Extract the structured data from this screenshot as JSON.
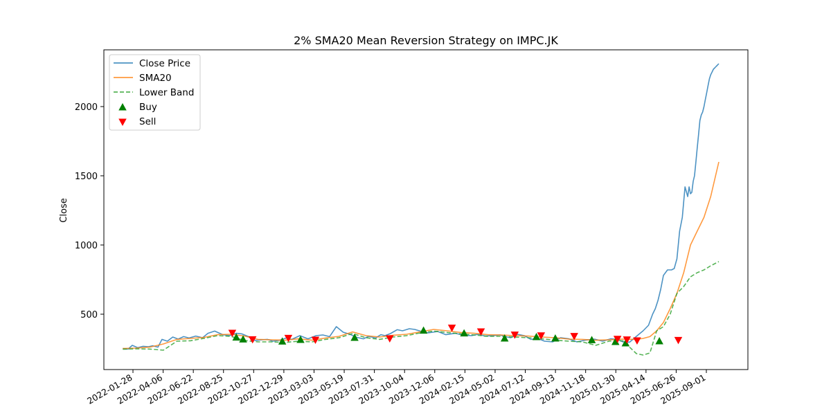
{
  "chart_data": {
    "type": "line",
    "title": "2% SMA20 Mean Reversion Strategy on IMPC.JK",
    "xlabel": "",
    "ylabel": "Close",
    "x_tick_labels": [
      "2022-01-28",
      "2022-04-06",
      "2022-06-22",
      "2022-08-25",
      "2022-10-27",
      "2022-12-29",
      "2023-03-03",
      "2023-05-19",
      "2023-07-31",
      "2023-10-04",
      "2023-12-06",
      "2024-02-15",
      "2024-05-02",
      "2024-07-12",
      "2024-09-13",
      "2024-11-18",
      "2025-01-30",
      "2025-04-14",
      "2025-06-26",
      "2025-09-01"
    ],
    "y_ticks": [
      500,
      1000,
      1500,
      2000
    ],
    "ylim": [
      100,
      2410
    ],
    "x_index_range": [
      -28,
      925
    ],
    "grid": false,
    "legend_position": "upper left",
    "colors": {
      "close": "#1f77b4",
      "sma20": "#ff7f0e",
      "lower": "#2ca02c",
      "buy": "#008000",
      "sell": "#ff0000"
    },
    "series": [
      {
        "name": "Close Price",
        "style": "solid",
        "x": [
          0,
          8,
          14,
          22,
          30,
          38,
          44,
          52,
          58,
          66,
          74,
          82,
          90,
          98,
          108,
          118,
          126,
          136,
          148,
          158,
          168,
          176,
          186,
          196,
          206,
          214,
          222,
          232,
          242,
          250,
          262,
          274,
          286,
          296,
          306,
          316,
          326,
          336,
          346,
          356,
          364,
          374,
          382,
          388,
          396,
          406,
          414,
          424,
          432,
          440,
          452,
          466,
          478,
          492,
          504,
          516,
          526,
          536,
          548,
          558,
          566,
          574,
          584,
          594,
          604,
          614,
          624,
          636,
          648,
          660,
          672,
          684,
          698,
          710,
          722,
          732,
          740,
          750,
          760,
          770,
          778,
          784,
          788,
          792,
          796,
          800,
          806,
          812,
          816,
          820,
          824,
          828,
          832,
          836,
          838,
          840,
          842,
          844,
          846,
          848,
          850,
          852,
          854,
          856,
          858,
          860,
          862,
          864,
          866,
          868,
          870,
          872,
          874,
          876,
          878,
          880,
          882
        ],
        "values": [
          252,
          248,
          275,
          258,
          268,
          265,
          272,
          262,
          318,
          305,
          335,
          320,
          338,
          328,
          342,
          330,
          362,
          378,
          352,
          345,
          362,
          358,
          338,
          310,
          315,
          318,
          305,
          312,
          328,
          318,
          345,
          322,
          345,
          350,
          338,
          410,
          370,
          355,
          333,
          322,
          340,
          328,
          352,
          345,
          360,
          388,
          380,
          395,
          390,
          378,
          365,
          375,
          352,
          362,
          348,
          345,
          355,
          342,
          345,
          350,
          338,
          330,
          355,
          345,
          318,
          325,
          305,
          300,
          330,
          322,
          300,
          312,
          320,
          305,
          322,
          318,
          300,
          298,
          340,
          380,
          420,
          500,
          540,
          600,
          680,
          780,
          820,
          820,
          830,
          900,
          1100,
          1200,
          1420,
          1350,
          1420,
          1370,
          1380,
          1460,
          1500,
          1600,
          1700,
          1800,
          1900,
          1940,
          1960,
          2000,
          2050,
          2100,
          2150,
          2200,
          2230,
          2250,
          2270,
          2280,
          2290,
          2300,
          2310
        ]
      },
      {
        "name": "SMA20",
        "style": "solid",
        "x": [
          0,
          20,
          40,
          60,
          80,
          100,
          120,
          140,
          160,
          180,
          200,
          220,
          240,
          260,
          280,
          300,
          320,
          340,
          360,
          380,
          400,
          420,
          440,
          460,
          480,
          500,
          520,
          540,
          560,
          580,
          600,
          620,
          640,
          660,
          680,
          700,
          720,
          740,
          760,
          770,
          780,
          790,
          800,
          810,
          820,
          830,
          840,
          850,
          860,
          870,
          882
        ],
        "values": [
          252,
          255,
          262,
          285,
          318,
          325,
          332,
          352,
          355,
          342,
          318,
          315,
          312,
          322,
          312,
          328,
          340,
          372,
          345,
          335,
          348,
          355,
          372,
          390,
          380,
          368,
          362,
          352,
          350,
          345,
          342,
          335,
          330,
          320,
          318,
          312,
          315,
          320,
          318,
          325,
          338,
          380,
          440,
          540,
          650,
          800,
          1000,
          1100,
          1200,
          1350,
          1600
        ]
      },
      {
        "name": "Lower Band",
        "style": "dashed",
        "x": [
          0,
          20,
          40,
          60,
          80,
          100,
          120,
          140,
          160,
          180,
          200,
          220,
          240,
          260,
          280,
          300,
          320,
          340,
          360,
          380,
          400,
          420,
          440,
          460,
          480,
          500,
          520,
          540,
          560,
          580,
          600,
          620,
          640,
          660,
          680,
          700,
          720,
          740,
          760,
          770,
          780,
          790,
          800,
          810,
          820,
          830,
          840,
          850,
          860,
          870,
          882
        ],
        "values": [
          247,
          250,
          248,
          240,
          305,
          308,
          325,
          345,
          340,
          310,
          300,
          300,
          296,
          305,
          300,
          318,
          330,
          360,
          330,
          318,
          335,
          345,
          365,
          378,
          368,
          358,
          350,
          340,
          340,
          335,
          330,
          322,
          312,
          305,
          300,
          275,
          306,
          308,
          215,
          205,
          220,
          380,
          410,
          500,
          650,
          700,
          770,
          800,
          820,
          850,
          880
        ]
      }
    ],
    "buy_signals": {
      "name": "Buy",
      "x": [
        168,
        178,
        236,
        263,
        343,
        445,
        505,
        565,
        612,
        640,
        694,
        729,
        744,
        794
      ],
      "values": [
        332,
        318,
        303,
        315,
        330,
        382,
        362,
        325,
        335,
        325,
        313,
        300,
        290,
        305
      ]
    },
    "sell_signals": {
      "name": "Sell",
      "x": [
        162,
        192,
        245,
        285,
        395,
        487,
        530,
        580,
        619,
        668,
        732,
        746,
        761,
        822
      ],
      "values": [
        365,
        318,
        328,
        315,
        325,
        402,
        375,
        352,
        346,
        342,
        321,
        317,
        310,
        313
      ]
    }
  }
}
